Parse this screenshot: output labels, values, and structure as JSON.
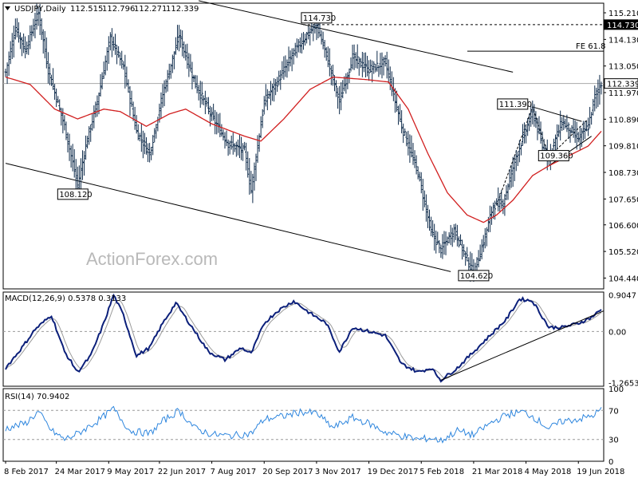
{
  "chart_data": [
    {
      "type": "ohlc",
      "title": "USDJPY,Daily",
      "ohlc_header": [
        "112.515",
        "112.796",
        "112.271",
        "112.339"
      ],
      "ylim": [
        104.0,
        115.6
      ],
      "y_ticks": [
        "115.210",
        "114.130",
        "113.050",
        "111.970",
        "110.890",
        "109.810",
        "108.730",
        "107.650",
        "106.600",
        "105.520",
        "104.440"
      ],
      "y_tick_values": [
        115.21,
        114.13,
        113.05,
        111.97,
        110.89,
        109.81,
        108.73,
        107.65,
        106.6,
        105.52,
        104.44
      ],
      "x_ticks": [
        "8 Feb 2017",
        "24 Mar 2017",
        "9 May 2017",
        "22 Jun 2017",
        "7 Aug 2017",
        "20 Sep 2017",
        "3 Nov 2017",
        "19 Dec 2017",
        "5 Feb 2018",
        "21 Mar 2018",
        "4 May 2018",
        "19 Jun 2018"
      ],
      "x_tick_index": [
        0,
        31,
        63,
        94,
        126,
        158,
        190,
        222,
        254,
        286,
        318,
        350
      ],
      "n_bars": 365,
      "anchors": [
        [
          0,
          112.8
        ],
        [
          6,
          114.6
        ],
        [
          12,
          113.7
        ],
        [
          20,
          115.2
        ],
        [
          26,
          112.9
        ],
        [
          36,
          110.6
        ],
        [
          44,
          108.2
        ],
        [
          50,
          110.1
        ],
        [
          56,
          111.6
        ],
        [
          64,
          114.2
        ],
        [
          72,
          113.0
        ],
        [
          80,
          110.4
        ],
        [
          88,
          109.5
        ],
        [
          96,
          111.9
        ],
        [
          106,
          114.3
        ],
        [
          116,
          112.3
        ],
        [
          126,
          111.0
        ],
        [
          136,
          109.9
        ],
        [
          146,
          109.6
        ],
        [
          150,
          108.0
        ],
        [
          158,
          111.6
        ],
        [
          166,
          112.4
        ],
        [
          176,
          113.6
        ],
        [
          184,
          114.3
        ],
        [
          190,
          114.7
        ],
        [
          196,
          113.5
        ],
        [
          204,
          111.6
        ],
        [
          212,
          113.4
        ],
        [
          222,
          112.9
        ],
        [
          232,
          113.2
        ],
        [
          242,
          110.6
        ],
        [
          252,
          108.7
        ],
        [
          260,
          106.3
        ],
        [
          266,
          105.6
        ],
        [
          274,
          106.4
        ],
        [
          282,
          105.2
        ],
        [
          286,
          104.62
        ],
        [
          292,
          105.9
        ],
        [
          298,
          107.4
        ],
        [
          304,
          107.5
        ],
        [
          312,
          109.4
        ],
        [
          322,
          111.2
        ],
        [
          328,
          109.8
        ],
        [
          332,
          109.36
        ],
        [
          340,
          110.8
        ],
        [
          350,
          110.1
        ],
        [
          356,
          110.6
        ],
        [
          360,
          111.8
        ],
        [
          364,
          112.339
        ]
      ],
      "ma_anchors": [
        [
          0,
          112.6
        ],
        [
          15,
          112.3
        ],
        [
          30,
          111.3
        ],
        [
          44,
          110.9
        ],
        [
          60,
          111.3
        ],
        [
          70,
          111.2
        ],
        [
          86,
          110.6
        ],
        [
          100,
          111.1
        ],
        [
          110,
          111.3
        ],
        [
          126,
          110.7
        ],
        [
          146,
          110.2
        ],
        [
          156,
          110.0
        ],
        [
          170,
          110.9
        ],
        [
          186,
          112.1
        ],
        [
          200,
          112.6
        ],
        [
          220,
          112.5
        ],
        [
          234,
          112.4
        ],
        [
          246,
          111.3
        ],
        [
          258,
          109.5
        ],
        [
          270,
          107.9
        ],
        [
          282,
          107.0
        ],
        [
          292,
          106.7
        ],
        [
          300,
          107.0
        ],
        [
          310,
          107.6
        ],
        [
          322,
          108.6
        ],
        [
          332,
          109.0
        ],
        [
          344,
          109.4
        ],
        [
          356,
          109.8
        ],
        [
          364,
          110.4
        ]
      ],
      "labels": [
        {
          "text": "114.730",
          "x": 190,
          "y": 114.73
        },
        {
          "text": "108.120",
          "x": 44,
          "y": 108.12
        },
        {
          "text": "104.620",
          "x": 286,
          "y": 104.62
        },
        {
          "text": "111.390",
          "x": 322,
          "y": 111.39
        },
        {
          "text": "109.360",
          "x": 332,
          "y": 109.36
        }
      ],
      "price_tags": [
        {
          "text": "114.730",
          "y": 114.73
        },
        {
          "text": "112.339",
          "y": 112.339
        }
      ],
      "fe_label": "FE 61.8",
      "fe_level": 113.65,
      "upper_channel": [
        [
          118,
          115.7
        ],
        [
          310,
          112.8
        ]
      ],
      "lower_channel": [
        [
          0,
          109.1
        ],
        [
          272,
          104.7
        ]
      ],
      "triangle_upper": [
        [
          322,
          111.39
        ],
        [
          352,
          110.8
        ]
      ],
      "triangle_lower": [
        [
          332,
          109.0
        ],
        [
          358,
          110.2
        ]
      ],
      "dashed_path": [
        [
          300,
          107.4
        ],
        [
          322,
          111.39
        ],
        [
          332,
          109.36
        ],
        [
          356,
          110.9
        ]
      ],
      "watermark": "ActionForex.com",
      "colors": {
        "bar": "#0d2a4a",
        "ma": "#d11f1f",
        "line": "#000000"
      }
    },
    {
      "type": "line",
      "title": "MACD(12,26,9) 0.5378 0.3133",
      "ylim": [
        -1.35,
        0.97
      ],
      "y_ticks": [
        "0.9047",
        "0.00",
        "-1.2653"
      ],
      "y_tick_values": [
        0.9047,
        0.0,
        -1.2653
      ],
      "macd_anchors": [
        [
          0,
          -0.9
        ],
        [
          10,
          -0.4
        ],
        [
          18,
          0.05
        ],
        [
          28,
          0.4
        ],
        [
          36,
          -0.5
        ],
        [
          44,
          -1.0
        ],
        [
          52,
          -0.6
        ],
        [
          60,
          0.2
        ],
        [
          66,
          0.9
        ],
        [
          72,
          0.4
        ],
        [
          80,
          -0.6
        ],
        [
          88,
          -0.4
        ],
        [
          96,
          0.2
        ],
        [
          104,
          0.7
        ],
        [
          114,
          0.1
        ],
        [
          124,
          -0.5
        ],
        [
          134,
          -0.7
        ],
        [
          144,
          -0.4
        ],
        [
          150,
          -0.55
        ],
        [
          158,
          0.2
        ],
        [
          166,
          0.5
        ],
        [
          176,
          0.75
        ],
        [
          186,
          0.45
        ],
        [
          196,
          0.2
        ],
        [
          204,
          -0.5
        ],
        [
          212,
          0.1
        ],
        [
          222,
          0.0
        ],
        [
          232,
          -0.1
        ],
        [
          242,
          -0.8
        ],
        [
          252,
          -1.0
        ],
        [
          260,
          -0.9
        ],
        [
          266,
          -1.2
        ],
        [
          276,
          -0.9
        ],
        [
          286,
          -0.5
        ],
        [
          296,
          -0.1
        ],
        [
          306,
          0.3
        ],
        [
          314,
          0.8
        ],
        [
          322,
          0.75
        ],
        [
          332,
          0.1
        ],
        [
          340,
          0.1
        ],
        [
          350,
          0.2
        ],
        [
          358,
          0.35
        ],
        [
          364,
          0.5378
        ]
      ],
      "signal_lag": 5,
      "zero_line": true,
      "trendline": [
        [
          266,
          -1.2
        ],
        [
          364,
          0.35
        ]
      ],
      "colors": {
        "macd": "#0b1f7a",
        "signal": "#9a9a9a",
        "zero": "#9a9a9a",
        "line": "#000000"
      }
    },
    {
      "type": "line",
      "title": "RSI(14) 70.9402",
      "ylim": [
        0,
        100
      ],
      "y_ticks": [
        "100",
        "70",
        "30",
        "0"
      ],
      "y_tick_values": [
        100,
        70,
        30,
        0
      ],
      "levels": [
        70,
        30
      ],
      "rsi_anchors": [
        [
          0,
          45
        ],
        [
          12,
          52
        ],
        [
          20,
          68
        ],
        [
          28,
          42
        ],
        [
          36,
          30
        ],
        [
          44,
          38
        ],
        [
          56,
          55
        ],
        [
          66,
          72
        ],
        [
          76,
          42
        ],
        [
          88,
          38
        ],
        [
          96,
          55
        ],
        [
          106,
          70
        ],
        [
          116,
          45
        ],
        [
          126,
          37
        ],
        [
          136,
          35
        ],
        [
          150,
          38
        ],
        [
          158,
          58
        ],
        [
          170,
          62
        ],
        [
          180,
          68
        ],
        [
          190,
          66
        ],
        [
          200,
          46
        ],
        [
          212,
          60
        ],
        [
          222,
          52
        ],
        [
          232,
          40
        ],
        [
          242,
          35
        ],
        [
          252,
          30
        ],
        [
          260,
          32
        ],
        [
          266,
          28
        ],
        [
          276,
          42
        ],
        [
          286,
          36
        ],
        [
          296,
          52
        ],
        [
          306,
          64
        ],
        [
          316,
          68
        ],
        [
          322,
          62
        ],
        [
          332,
          45
        ],
        [
          340,
          55
        ],
        [
          350,
          58
        ],
        [
          358,
          62
        ],
        [
          364,
          70.9402
        ]
      ],
      "colors": {
        "rsi": "#2e86de",
        "level": "#9a9a9a"
      }
    }
  ]
}
